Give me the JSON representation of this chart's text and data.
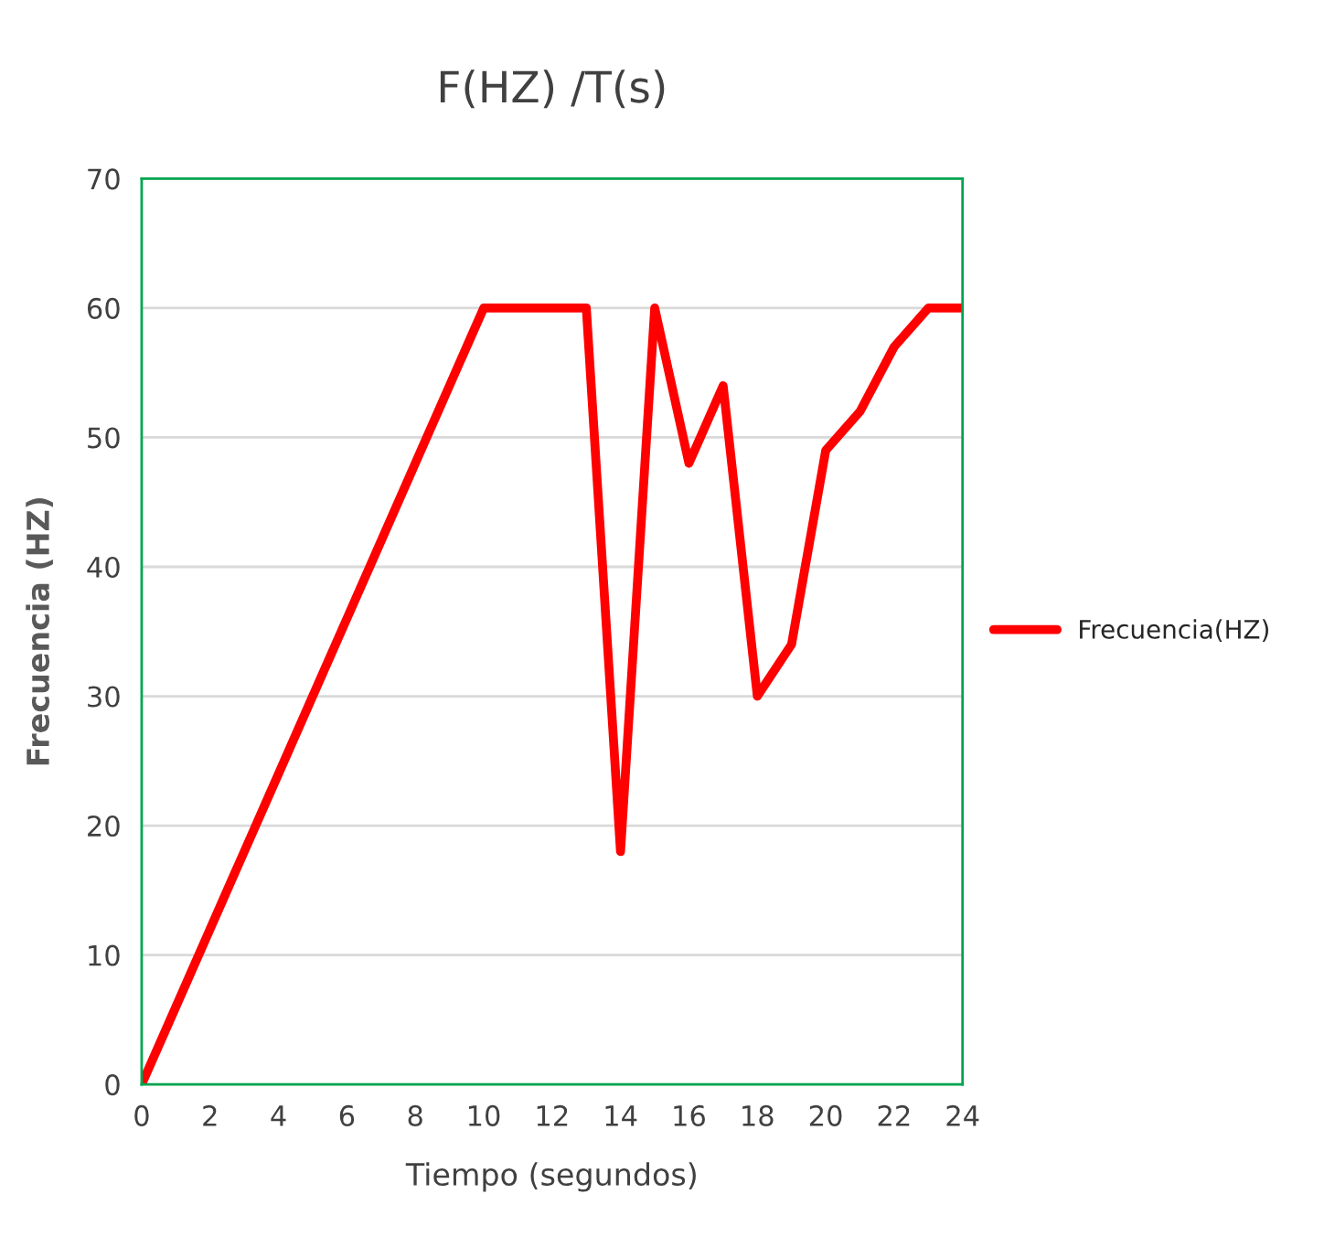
{
  "chart_data": {
    "type": "line",
    "title": "F(HZ) /T(s)",
    "xlabel": "Tiempo (segundos)",
    "ylabel": "Frecuencia (HZ)",
    "x": [
      0,
      1,
      2,
      3,
      4,
      5,
      6,
      7,
      8,
      9,
      10,
      11,
      12,
      13,
      14,
      15,
      16,
      17,
      18,
      19,
      20,
      21,
      22,
      23,
      24
    ],
    "series": [
      {
        "name": "Frecuencia(HZ)",
        "color": "#ff0000",
        "values": [
          0,
          6,
          12,
          18,
          24,
          30,
          36,
          42,
          48,
          54,
          60,
          60,
          60,
          60,
          18,
          60,
          48,
          54,
          30,
          34,
          49,
          52,
          57,
          60,
          60
        ]
      }
    ],
    "xlim": [
      0,
      24
    ],
    "xticks": [
      0,
      2,
      4,
      6,
      8,
      10,
      12,
      14,
      16,
      18,
      20,
      22,
      24
    ],
    "ylim": [
      0,
      70
    ],
    "yticks": [
      0,
      10,
      20,
      30,
      40,
      50,
      60,
      70
    ],
    "grid": "y",
    "legend": "right",
    "marker": "none",
    "line_style": "solid"
  }
}
